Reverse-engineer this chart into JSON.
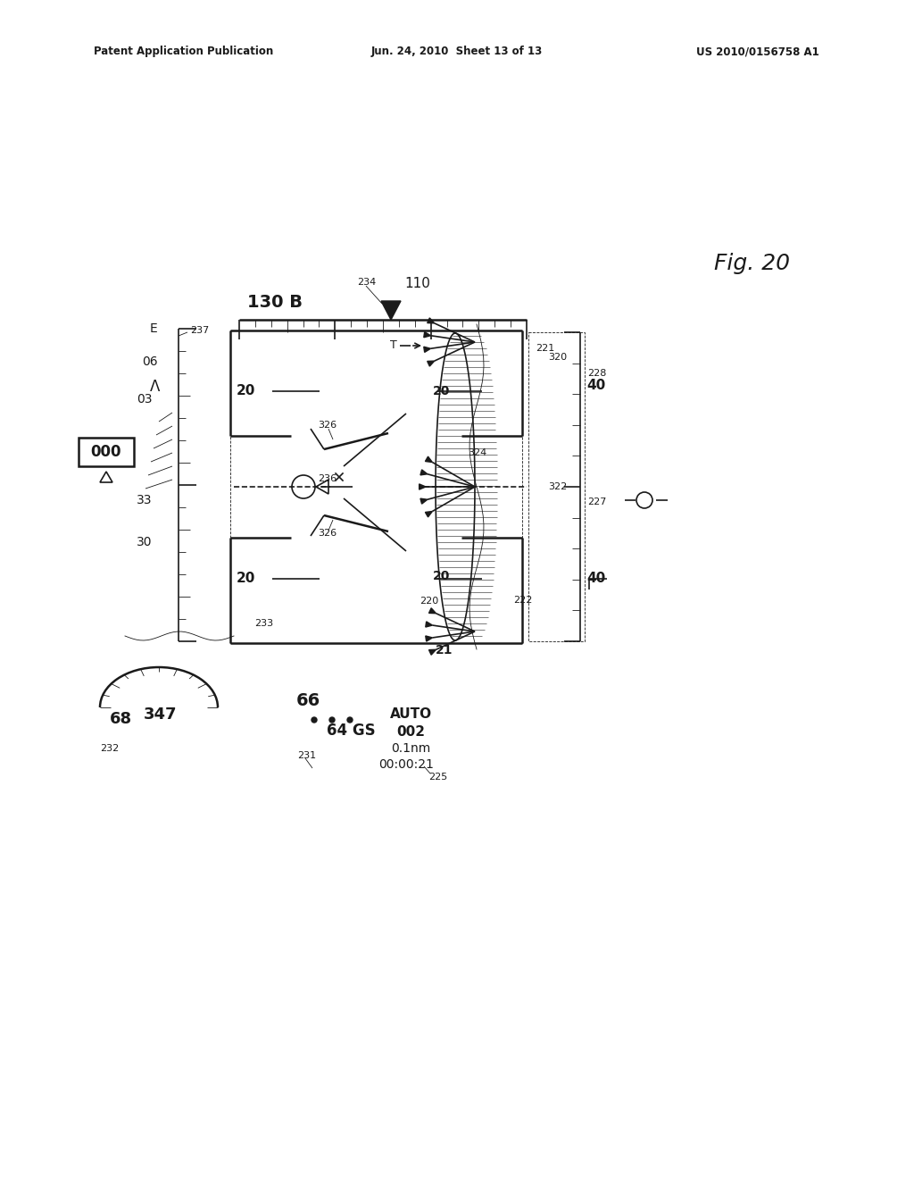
{
  "bg_color": "#ffffff",
  "ink_color": "#1a1a1a",
  "header_left": "Patent Application Publication",
  "header_center": "Jun. 24, 2010  Sheet 13 of 13",
  "header_right": "US 2010/0156758 A1",
  "fig_label": "Fig. 20"
}
